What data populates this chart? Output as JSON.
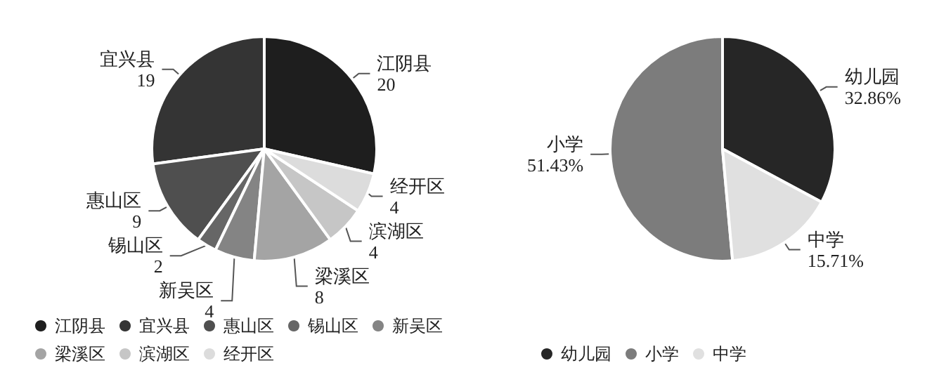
{
  "chart_data": [
    {
      "type": "pie",
      "categories": [
        "江阴县",
        "宜兴县",
        "惠山区",
        "锡山区",
        "新吴区",
        "梁溪区",
        "滨湖区",
        "经开区"
      ],
      "values": [
        20,
        19,
        9,
        2,
        4,
        8,
        4,
        4
      ],
      "colors": [
        "#1e1e1e",
        "#343434",
        "#4f4f4f",
        "#666666",
        "#848484",
        "#a4a4a4",
        "#c6c6c6",
        "#dcdcdc"
      ],
      "data_labels": true,
      "legend": "bottom"
    },
    {
      "type": "pie",
      "categories": [
        "幼儿园",
        "小学",
        "中学"
      ],
      "values": [
        32.86,
        51.43,
        15.71
      ],
      "colors": [
        "#262626",
        "#7c7c7c",
        "#e0e0e0"
      ],
      "value_labels": [
        "32.86%",
        "51.43%",
        "15.71%"
      ],
      "legend": "bottom"
    }
  ]
}
